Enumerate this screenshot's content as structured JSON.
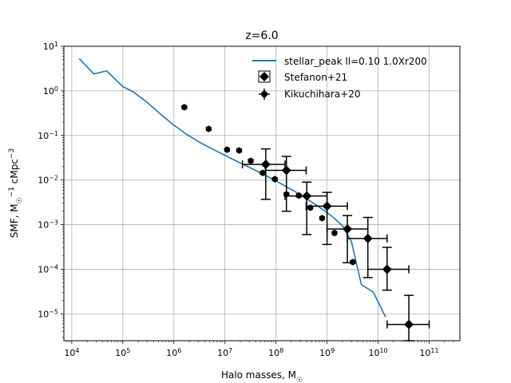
{
  "chart_data": {
    "type": "scatter",
    "title": "z=6.0",
    "xlabel": "Halo masses, M",
    "xlabel_sub": "☉",
    "ylabel": "SMF, M",
    "ylabel_sup1": "−1",
    "ylabel_sub": "☉",
    "ylabel_mid": " cMpc",
    "ylabel_sup2": "−3",
    "x_scale": "log",
    "y_scale": "log",
    "xlim": [
      7000,
      400000000000
    ],
    "ylim": [
      2.5e-06,
      10
    ],
    "x_ticks": [
      {
        "value": 10000,
        "base": "10",
        "exp": "4"
      },
      {
        "value": 100000,
        "base": "10",
        "exp": "5"
      },
      {
        "value": 1000000,
        "base": "10",
        "exp": "6"
      },
      {
        "value": 10000000,
        "base": "10",
        "exp": "7"
      },
      {
        "value": 100000000,
        "base": "10",
        "exp": "8"
      },
      {
        "value": 1000000000,
        "base": "10",
        "exp": "9"
      },
      {
        "value": 10000000000,
        "base": "10",
        "exp": "10"
      },
      {
        "value": 100000000000,
        "base": "10",
        "exp": "11"
      }
    ],
    "y_ticks": [
      {
        "value": 1e-05,
        "base": "10",
        "exp": "−5"
      },
      {
        "value": 0.0001,
        "base": "10",
        "exp": "−4"
      },
      {
        "value": 0.001,
        "base": "10",
        "exp": "−3"
      },
      {
        "value": 0.01,
        "base": "10",
        "exp": "−2"
      },
      {
        "value": 0.1,
        "base": "10",
        "exp": "−1"
      },
      {
        "value": 1,
        "base": "10",
        "exp": "0"
      },
      {
        "value": 10,
        "base": "10",
        "exp": "1"
      }
    ],
    "grid": true,
    "legend_position": "top-right",
    "colors": {
      "line": "#1f77b4",
      "markers": "#000000",
      "grid": "#b0b0b0"
    },
    "series": [
      {
        "name": "stellar_peak ll=0.10 1.0Xr200",
        "kind": "line",
        "points": [
          [
            14000,
            5.3
          ],
          [
            27000,
            2.4
          ],
          [
            48000,
            2.8
          ],
          [
            100000,
            1.25
          ],
          [
            160000,
            0.95
          ],
          [
            300000,
            0.55
          ],
          [
            550000,
            0.3
          ],
          [
            1000000,
            0.17
          ],
          [
            1800000,
            0.105
          ],
          [
            3200000,
            0.07
          ],
          [
            6000000,
            0.048
          ],
          [
            11000000,
            0.034
          ],
          [
            20000000,
            0.024
          ],
          [
            36000000,
            0.0175
          ],
          [
            65000000,
            0.0125
          ],
          [
            120000000,
            0.0085
          ],
          [
            220000000,
            0.0058
          ],
          [
            400000000,
            0.0038
          ],
          [
            700000000,
            0.0025
          ],
          [
            1200000000,
            0.0016
          ],
          [
            2000000000,
            0.00095
          ],
          [
            3000000000,
            0.00042
          ],
          [
            4700000000,
            4.5e-05
          ],
          [
            8000000000,
            3.1e-05
          ],
          [
            14000000000,
            8.5e-06
          ]
        ]
      },
      {
        "name": "Stefanon+21",
        "kind": "errorbar",
        "marker": "diamond",
        "points": [
          {
            "x": 63000000,
            "y": 0.0225,
            "xlo": 22000000,
            "xhi": 150000000,
            "ylo": 0.0037,
            "yhi": 0.05
          },
          {
            "x": 160000000,
            "y": 0.0165,
            "xlo": 62000000,
            "xhi": 390000000,
            "ylo": 0.002,
            "yhi": 0.034
          },
          {
            "x": 400000000,
            "y": 0.0044,
            "xlo": 150000000,
            "xhi": 1000000000,
            "ylo": 0.0006,
            "yhi": 0.009
          },
          {
            "x": 1000000000,
            "y": 0.0026,
            "xlo": 390000000,
            "xhi": 2500000000,
            "ylo": 0.00036,
            "yhi": 0.0053
          },
          {
            "x": 2500000000,
            "y": 0.0008,
            "xlo": 1000000000,
            "xhi": 6300000000,
            "ylo": 0.00014,
            "yhi": 0.0016
          },
          {
            "x": 6300000000,
            "y": 0.00049,
            "xlo": 2500000000,
            "xhi": 15000000000,
            "ylo": 6.5e-05,
            "yhi": 0.00145
          },
          {
            "x": 15000000000,
            "y": 0.0001,
            "xlo": 6300000000,
            "xhi": 40000000000,
            "ylo": 3.4e-05,
            "yhi": 0.00031
          },
          {
            "x": 40000000000,
            "y": 5.8e-06,
            "xlo": 15000000000,
            "xhi": 100000000000,
            "ylo": 2.5e-06,
            "yhi": 2.6e-05
          }
        ]
      },
      {
        "name": "Kikuchihara+20",
        "kind": "errorbar",
        "marker": "hexagon",
        "points": [
          {
            "x": 1600000,
            "y": 0.43
          },
          {
            "x": 4800000,
            "y": 0.14
          },
          {
            "x": 11000000,
            "y": 0.048
          },
          {
            "x": 19000000,
            "y": 0.046
          },
          {
            "x": 32000000,
            "y": 0.027
          },
          {
            "x": 55000000,
            "y": 0.0145
          },
          {
            "x": 95000000,
            "y": 0.0105
          },
          {
            "x": 160000000,
            "y": 0.0048
          },
          {
            "x": 280000000,
            "y": 0.0045
          },
          {
            "x": 470000000,
            "y": 0.0024
          },
          {
            "x": 800000000,
            "y": 0.0014
          },
          {
            "x": 1400000000,
            "y": 0.00065
          },
          {
            "x": 3200000000,
            "y": 0.000145
          }
        ]
      }
    ]
  }
}
